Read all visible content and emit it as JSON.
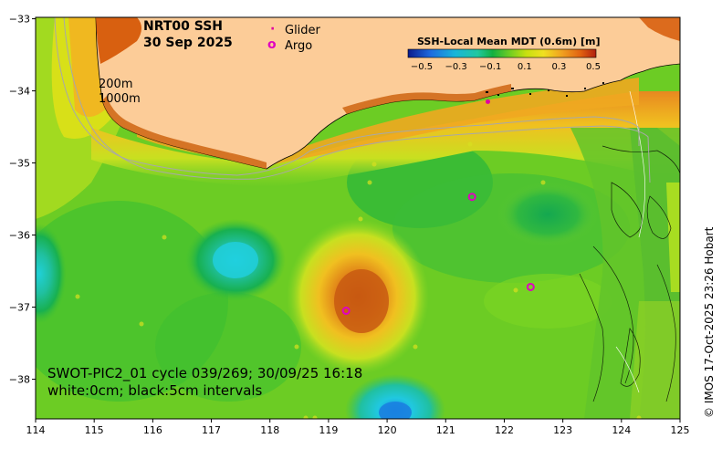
{
  "title": {
    "line1": "NRT00 SSH",
    "line2": "30 Sep 2025"
  },
  "legend": {
    "glider_label": "Glider",
    "glider_symbol": "·",
    "glider_color": "#e000a0",
    "argo_label": "Argo",
    "argo_symbol": "o",
    "argo_color": "#e000c0"
  },
  "colorbar": {
    "title": "SSH-Local Mean MDT (0.6m) [m]",
    "tick_labels": [
      "−0.5",
      "−0.3",
      "−0.1",
      "0.1",
      "0.3",
      "0.5"
    ],
    "colors": [
      "#0a1a8c",
      "#1e6be0",
      "#19b5d8",
      "#20c8a0",
      "#14b040",
      "#78d020",
      "#c8e010",
      "#f0e020",
      "#f0a020",
      "#e06010",
      "#b02010"
    ]
  },
  "isobaths": {
    "label_200": "200m",
    "label_1000": "1000m"
  },
  "info": {
    "line1": "SWOT-PIC2_01 cycle 039/269; 30/09/25 16:18",
    "line2": "white:0cm; black:5cm intervals"
  },
  "credit": "© IMOS 17-Oct-2025 23:26 Hobart",
  "axes": {
    "x_ticks": [
      "114",
      "115",
      "116",
      "117",
      "118",
      "119",
      "120",
      "121",
      "122",
      "123",
      "124",
      "125"
    ],
    "y_ticks": [
      "−33",
      "−34",
      "−35",
      "−36",
      "−37",
      "−38"
    ]
  },
  "argo_floats": [
    {
      "lon": 121.45,
      "lat": -35.47
    },
    {
      "lon": 122.45,
      "lat": -36.72
    },
    {
      "lon": 119.3,
      "lat": -37.05
    }
  ],
  "glider": {
    "lon": 121.72,
    "lat": -34.15
  },
  "colors": {
    "land": "#fccc98",
    "ocean_base": "#66cc22"
  }
}
